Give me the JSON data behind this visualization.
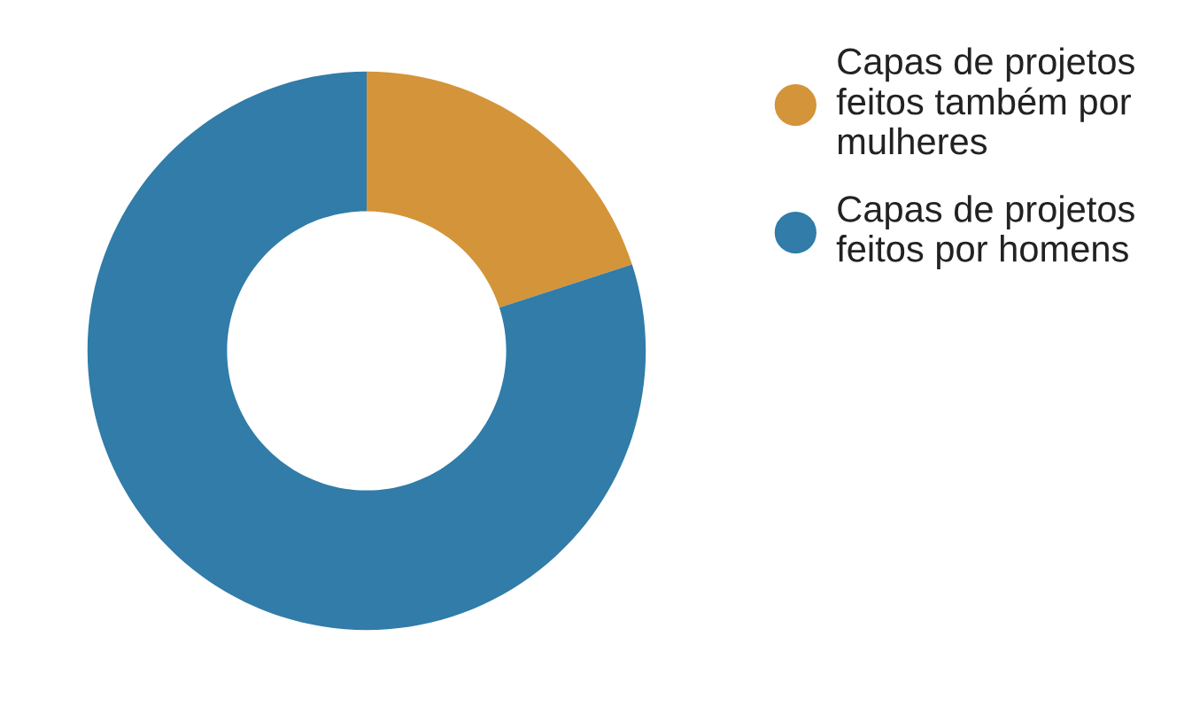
{
  "chart_data": {
    "type": "donut",
    "categories": [
      "Capas de projetos feitos também por mulheres",
      "Capas de projetos feitos por homens"
    ],
    "values": [
      20,
      80
    ],
    "colors": [
      "#d4943a",
      "#317ca8"
    ],
    "legend": "right"
  }
}
